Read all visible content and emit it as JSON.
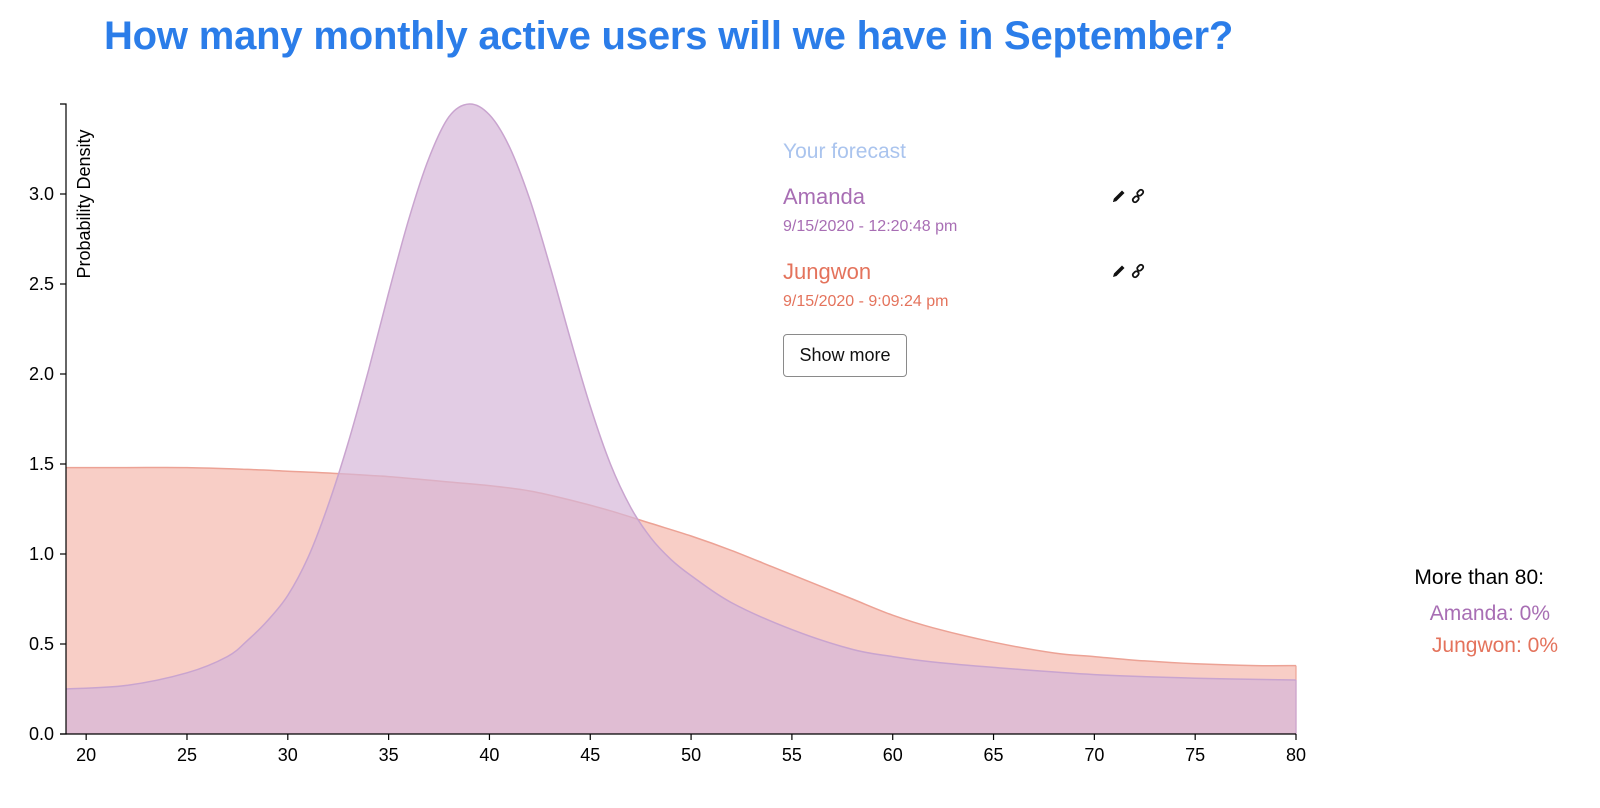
{
  "page": {
    "title": "How many monthly active users will we have in September?"
  },
  "colors": {
    "title": "#2b7de9",
    "amanda": "#a86eb4",
    "jungwon": "#e4735c",
    "amanda_fill": "#d6b6d9",
    "jungwon_fill": "#f4b3a8"
  },
  "forecast_panel": {
    "heading": "Your forecast",
    "forecasters": [
      {
        "name": "Amanda",
        "timestamp": "9/15/2020 - 12:20:48 pm",
        "edit_icon": "pencil-icon",
        "link_icon": "link-icon"
      },
      {
        "name": "Jungwon",
        "timestamp": "9/15/2020 - 9:09:24 pm",
        "edit_icon": "pencil-icon",
        "link_icon": "link-icon"
      }
    ],
    "show_more_label": "Show more"
  },
  "tail_panel": {
    "heading": "More than 80:",
    "rows": [
      {
        "label": "Amanda: 0%"
      },
      {
        "label": "Jungwon: 0%"
      }
    ]
  },
  "chart_data": {
    "type": "area",
    "title": "How many monthly active users will we have in September?",
    "xlabel": "",
    "ylabel": "Probability Density",
    "xlim": [
      19,
      80
    ],
    "ylim": [
      0,
      3.5
    ],
    "xticks": [
      20,
      25,
      30,
      35,
      40,
      45,
      50,
      55,
      60,
      65,
      70,
      75,
      80
    ],
    "yticks": [
      "0.0",
      "0.5",
      "1.0",
      "1.5",
      "2.0",
      "2.5",
      "3.0"
    ],
    "grid": false,
    "series": [
      {
        "name": "Jungwon",
        "x": [
          19,
          22,
          25,
          28,
          30,
          32,
          35,
          38,
          40,
          42,
          44,
          46,
          48,
          50,
          52,
          54,
          56,
          58,
          60,
          62,
          65,
          68,
          70,
          72,
          75,
          78,
          80
        ],
        "y": [
          1.48,
          1.48,
          1.48,
          1.47,
          1.46,
          1.45,
          1.43,
          1.4,
          1.38,
          1.35,
          1.3,
          1.24,
          1.17,
          1.1,
          1.02,
          0.93,
          0.84,
          0.75,
          0.66,
          0.59,
          0.51,
          0.45,
          0.43,
          0.41,
          0.39,
          0.38,
          0.38
        ]
      },
      {
        "name": "Amanda",
        "x": [
          19,
          22,
          25,
          27,
          28,
          29,
          30,
          31,
          32,
          33,
          34,
          35,
          36,
          37,
          38,
          39,
          40,
          41,
          42,
          43,
          44,
          45,
          46,
          47,
          48,
          49,
          50,
          52,
          55,
          58,
          60,
          62,
          65,
          70,
          75,
          80
        ],
        "y": [
          0.25,
          0.27,
          0.34,
          0.43,
          0.52,
          0.63,
          0.77,
          0.98,
          1.27,
          1.62,
          2.02,
          2.45,
          2.86,
          3.2,
          3.43,
          3.5,
          3.44,
          3.26,
          2.97,
          2.6,
          2.2,
          1.82,
          1.5,
          1.26,
          1.09,
          0.97,
          0.88,
          0.73,
          0.58,
          0.47,
          0.43,
          0.4,
          0.37,
          0.33,
          0.31,
          0.3
        ]
      }
    ]
  }
}
